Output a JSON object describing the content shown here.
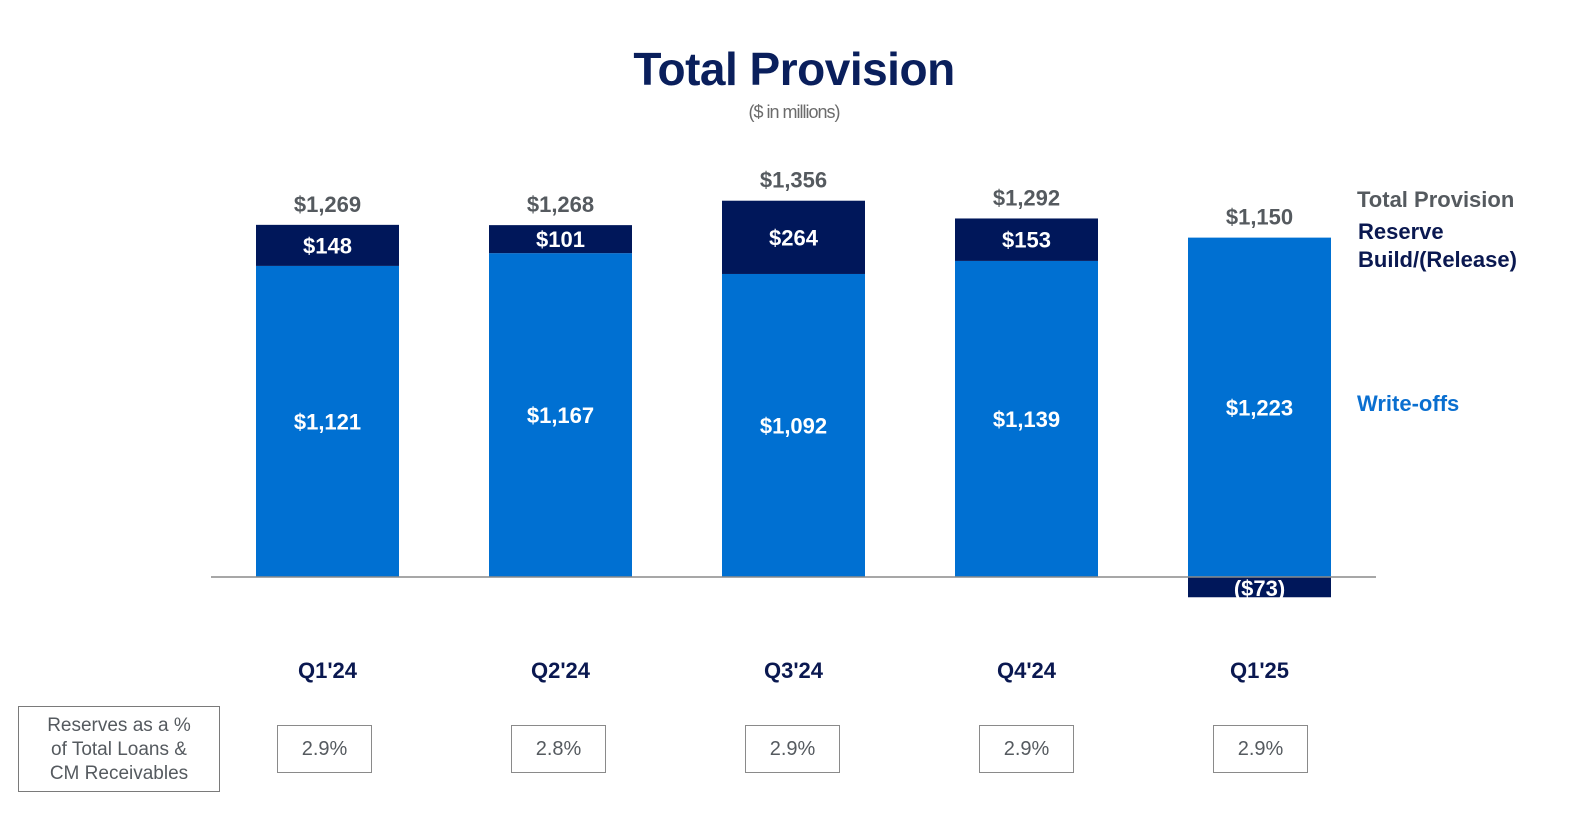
{
  "colors": {
    "write_offs": "#0070d2",
    "reserve": "#00175a",
    "title": "#0a1f5c",
    "total_label": "#555a5f",
    "axis": "#8a8a8a"
  },
  "chart_data": {
    "type": "bar",
    "stacked": true,
    "title": "Total Provision",
    "subtitle": "($ in millions)",
    "categories": [
      "Q1'24",
      "Q2'24",
      "Q3'24",
      "Q4'24",
      "Q1'25"
    ],
    "series": [
      {
        "name": "Write-offs",
        "values": [
          1121,
          1167,
          1092,
          1139,
          1223
        ],
        "labels": [
          "$1,121",
          "$1,167",
          "$1,092",
          "$1,139",
          "$1,223"
        ]
      },
      {
        "name": "Reserve Build/(Release)",
        "values": [
          148,
          101,
          264,
          153,
          -73
        ],
        "labels": [
          "$148",
          "$101",
          "$264",
          "$153",
          "($73)"
        ]
      }
    ],
    "totals": {
      "name": "Total Provision",
      "values": [
        1269,
        1268,
        1356,
        1292,
        1150
      ],
      "labels": [
        "$1,269",
        "$1,268",
        "$1,356",
        "$1,292",
        "$1,150"
      ]
    },
    "legend": [
      "Total Provision",
      "Reserve Build/(Release)",
      "Write-offs"
    ],
    "legend_placement": "right",
    "grid": false,
    "xlabel": "",
    "ylabel": ""
  },
  "reserves_row": {
    "label_lines": [
      "Reserves as a %",
      "of Total Loans &",
      "CM Receivables"
    ],
    "values": [
      "2.9%",
      "2.8%",
      "2.9%",
      "2.9%",
      "2.9%"
    ]
  }
}
